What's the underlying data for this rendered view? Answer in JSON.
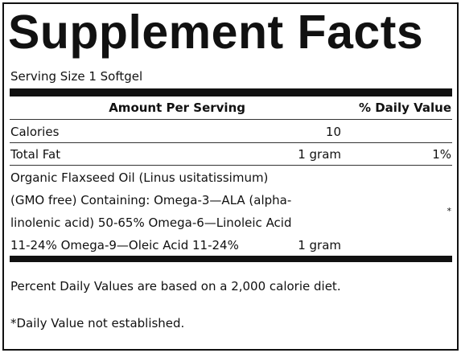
{
  "title": "Supplement Facts",
  "serving_size": "Serving Size 1 Softgel",
  "table": {
    "header": {
      "amount": "Amount Per Serving",
      "daily_value": "% Daily Value"
    },
    "rows": [
      {
        "name": "Calories",
        "amount": "10"
      },
      {
        "name": "Total Fat",
        "amount": "1 gram",
        "daily_value": "1%"
      },
      {
        "name_lines": [
          "Organic Flaxseed Oil (Linus usitatissimum)",
          "(GMO free) Containing: Omega-3—ALA (alpha-",
          "linolenic acid) 50-65% Omega-6—Linoleic Acid",
          "11-24% Omega-9—Oleic Acid 11-24%"
        ],
        "amount": "1 gram",
        "daily_value": "*"
      }
    ]
  },
  "footnotes": [
    "Percent Daily Values are based on a 2,000 calorie diet.",
    "*Daily Value not established."
  ]
}
